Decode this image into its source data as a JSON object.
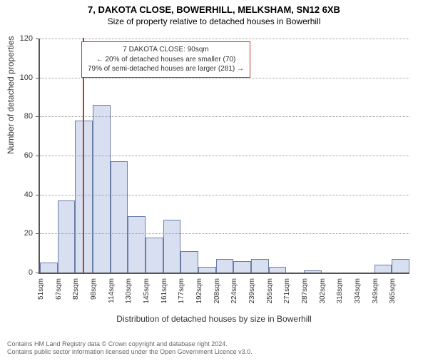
{
  "title_main": "7, DAKOTA CLOSE, BOWERHILL, MELKSHAM, SN12 6XB",
  "title_sub": "Size of property relative to detached houses in Bowerhill",
  "y_axis": {
    "label": "Number of detached properties",
    "max": 120,
    "ticks": [
      0,
      20,
      40,
      60,
      80,
      100,
      120
    ]
  },
  "x_axis": {
    "label": "Distribution of detached houses by size in Bowerhill",
    "bin_start": 51,
    "bin_width_sqm": 16,
    "labels": [
      "51sqm",
      "67sqm",
      "82sqm",
      "98sqm",
      "114sqm",
      "130sqm",
      "145sqm",
      "161sqm",
      "177sqm",
      "192sqm",
      "208sqm",
      "224sqm",
      "239sqm",
      "255sqm",
      "271sqm",
      "287sqm",
      "302sqm",
      "318sqm",
      "334sqm",
      "349sqm",
      "365sqm"
    ]
  },
  "bars": {
    "values": [
      5,
      37,
      78,
      86,
      57,
      29,
      18,
      27,
      11,
      3,
      7,
      6,
      7,
      3,
      0,
      1,
      0,
      0,
      0,
      4,
      7
    ],
    "fill": "#d7dff0",
    "border": "#6b7da6"
  },
  "marker": {
    "sqm": 90,
    "color": "#c0392b"
  },
  "callout": {
    "border": "#c0392b",
    "line1": "7 DAKOTA CLOSE: 90sqm",
    "line2": "← 20% of detached houses are smaller (70)",
    "line3": "79% of semi-detached houses are larger (281) →"
  },
  "footer": {
    "line1": "Contains HM Land Registry data © Crown copyright and database right 2024.",
    "line2": "Contains public sector information licensed under the Open Government Licence v3.0."
  },
  "colors": {
    "text": "#333333",
    "axis": "#555555",
    "grid": "#999999",
    "bg": "#ffffff"
  },
  "typography": {
    "title_fontsize_pt": 11,
    "axis_label_fontsize_pt": 10,
    "tick_fontsize_pt": 8,
    "callout_fontsize_pt": 8,
    "footer_fontsize_pt": 7
  }
}
